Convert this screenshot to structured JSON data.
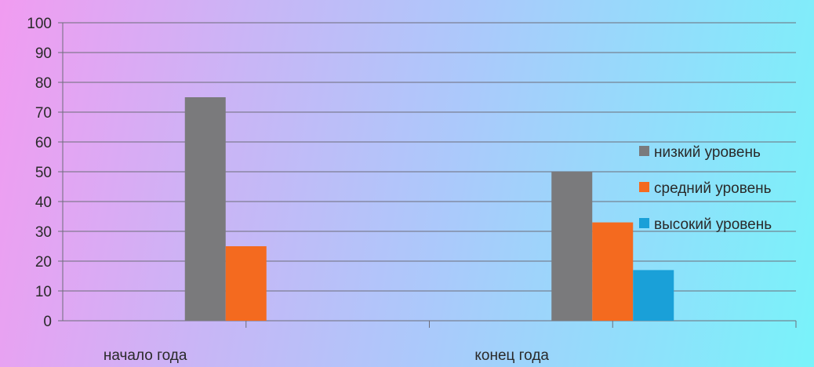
{
  "chart_data": {
    "type": "bar",
    "categories": [
      "начало года",
      "конец года"
    ],
    "series": [
      {
        "name": "низкий уровень",
        "values": [
          75,
          50
        ],
        "color": "#7a7a7c"
      },
      {
        "name": "средний уровень",
        "values": [
          25,
          33
        ],
        "color": "#f46a1f"
      },
      {
        "name": "высокий уровень",
        "values": [
          0,
          17
        ],
        "color": "#1aa0d8"
      }
    ],
    "ylim": [
      0,
      100
    ],
    "yticks": [
      "0",
      "10",
      "20",
      "30",
      "40",
      "50",
      "60",
      "70",
      "80",
      "90",
      "100"
    ],
    "grid": true,
    "legend_position": "right"
  }
}
